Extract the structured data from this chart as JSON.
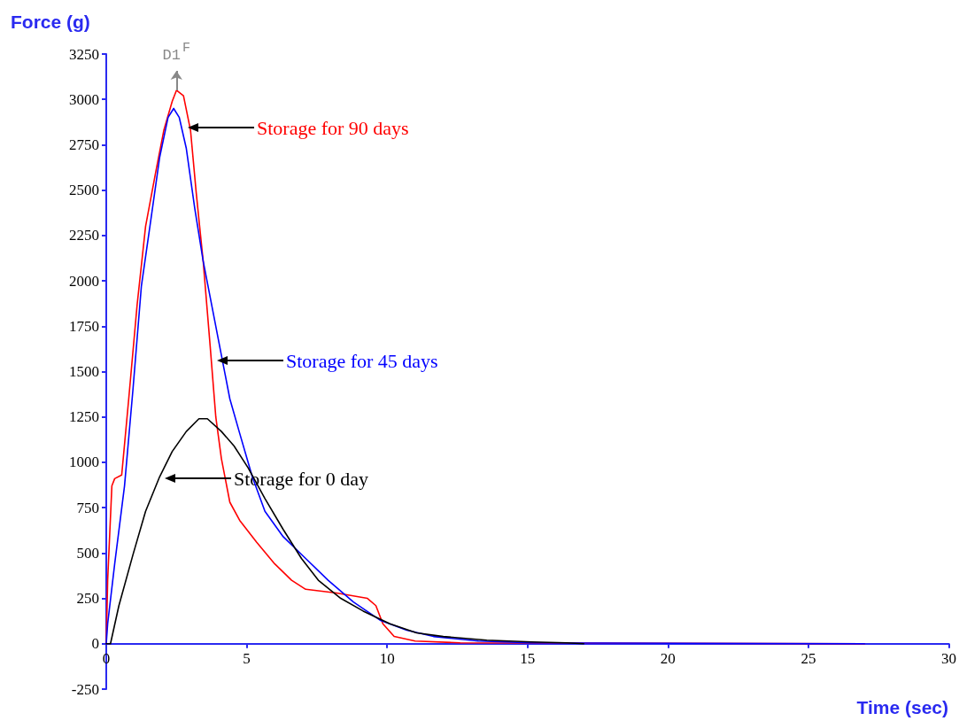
{
  "chart_data": {
    "type": "line",
    "xlabel": "Time (sec)",
    "ylabel": "Force (g)",
    "xlim": [
      0,
      30
    ],
    "xticks": [
      0,
      5,
      10,
      15,
      20,
      25,
      30
    ],
    "ylim": [
      -250,
      3250
    ],
    "yticks": [
      -250,
      0,
      250,
      500,
      750,
      1000,
      1250,
      1500,
      1750,
      2000,
      2250,
      2500,
      2750,
      3000,
      3250
    ],
    "grid": false,
    "marker": "none",
    "line_style": "solid",
    "series": [
      {
        "color": "#ff0000",
        "x": [
          0,
          0.05,
          0.2,
          0.3,
          0.55,
          0.8,
          1.1,
          1.4,
          1.75,
          2.05,
          2.35,
          2.5,
          2.75,
          3,
          3.2,
          3.45,
          3.7,
          3.9,
          4.1,
          4.4,
          4.75,
          5.35,
          6,
          6.6,
          7.1,
          8.2,
          9.3,
          9.6,
          9.85,
          10.25,
          11,
          12.6,
          27
        ],
        "values": [
          0,
          350,
          870,
          910,
          930,
          1350,
          1870,
          2300,
          2590,
          2830,
          2990,
          3050,
          3020,
          2830,
          2490,
          2110,
          1640,
          1250,
          1020,
          780,
          680,
          560,
          440,
          350,
          300,
          280,
          250,
          210,
          110,
          40,
          15,
          5,
          0
        ]
      },
      {
        "color": "#0000ff",
        "x": [
          0,
          0.05,
          0.3,
          0.65,
          0.95,
          1.25,
          1.6,
          1.9,
          2.2,
          2.4,
          2.6,
          2.85,
          3.15,
          3.45,
          3.8,
          4.1,
          4.4,
          4.75,
          5.2,
          5.65,
          6.3,
          7.1,
          7.9,
          8.8,
          9.75,
          10.7,
          11.65,
          13.25,
          15.1,
          27
        ],
        "values": [
          0,
          110,
          440,
          870,
          1400,
          1970,
          2350,
          2680,
          2900,
          2950,
          2900,
          2730,
          2400,
          2110,
          1830,
          1590,
          1350,
          1160,
          920,
          730,
          590,
          470,
          350,
          230,
          130,
          75,
          40,
          15,
          5,
          0
        ]
      },
      {
        "color": "#000000",
        "x": [
          0,
          0.15,
          0.45,
          0.95,
          1.4,
          1.9,
          2.35,
          2.85,
          3.3,
          3.6,
          4.1,
          4.55,
          5.05,
          5.65,
          6.3,
          6.95,
          7.55,
          8.35,
          9.15,
          10.1,
          11.05,
          12,
          13.55,
          15.15,
          16.4,
          17
        ],
        "values": [
          0,
          0,
          210,
          490,
          730,
          920,
          1060,
          1170,
          1240,
          1240,
          1170,
          1090,
          970,
          800,
          630,
          470,
          350,
          250,
          180,
          110,
          60,
          40,
          20,
          10,
          5,
          0
        ]
      }
    ],
    "annotations": [
      "Storage for 90 days",
      "Storage for 45 days",
      "Storage for 0 day",
      {
        "text": "D1$^{F}$",
        "x": 2.5,
        "y": 3050
      }
    ]
  }
}
